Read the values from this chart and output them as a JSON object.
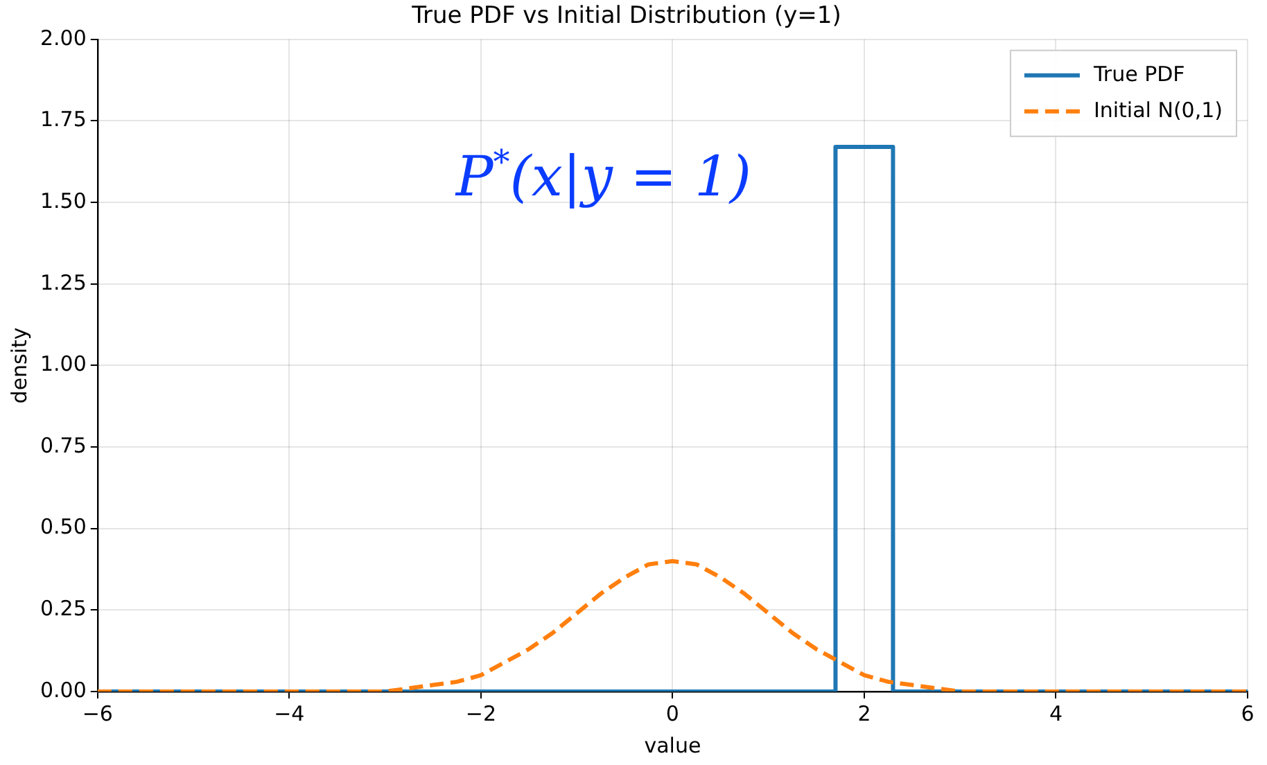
{
  "chart_data": {
    "type": "line",
    "title": "True PDF vs Initial Distribution (y=1)",
    "xlabel": "value",
    "ylabel": "density",
    "annotations": [
      "P$^{*}$(x|y = 1)"
    ],
    "series": [
      {
        "name": "True PDF",
        "color": "#1f77b4",
        "line_style": "solid",
        "x": [
          -6,
          1.7,
          1.7,
          2.3,
          2.3,
          6
        ],
        "values": [
          0,
          0,
          1.67,
          1.67,
          0,
          0
        ]
      },
      {
        "name": "Initial N(0,1)",
        "color": "#ff7f0e",
        "line_style": "dashed",
        "x": [
          -6,
          -5,
          -4,
          -3.5,
          -3,
          -2.75,
          -2.5,
          -2.25,
          -2,
          -1.75,
          -1.5,
          -1.25,
          -1,
          -0.75,
          -0.5,
          -0.25,
          0,
          0.25,
          0.5,
          0.75,
          1,
          1.25,
          1.5,
          1.75,
          2,
          2.25,
          2.5,
          2.75,
          3,
          3.5,
          4,
          5,
          6
        ],
        "values": [
          0,
          0,
          0,
          0,
          0,
          0.01,
          0.02,
          0.03,
          0.05,
          0.09,
          0.13,
          0.18,
          0.24,
          0.3,
          0.35,
          0.39,
          0.4,
          0.39,
          0.35,
          0.3,
          0.24,
          0.18,
          0.13,
          0.09,
          0.05,
          0.03,
          0.02,
          0.01,
          0,
          0,
          0,
          0,
          0
        ]
      }
    ],
    "xlim": [
      -6,
      6
    ],
    "xticks": [
      {
        "value": -6,
        "label": "−6"
      },
      {
        "value": -4,
        "label": "−4"
      },
      {
        "value": -2,
        "label": "−2"
      },
      0,
      2,
      4,
      6
    ],
    "ylim": [
      0,
      2
    ],
    "yticks": [
      {
        "value": 0,
        "label": "0.00"
      },
      {
        "value": 0.25,
        "label": "0.25"
      },
      {
        "value": 0.5,
        "label": "0.50"
      },
      {
        "value": 0.75,
        "label": "0.75"
      },
      {
        "value": 1,
        "label": "1.00"
      },
      {
        "value": 1.25,
        "label": "1.25"
      },
      {
        "value": 1.5,
        "label": "1.50"
      },
      {
        "value": 1.75,
        "label": "1.75"
      },
      {
        "value": 2,
        "label": "2.00"
      }
    ],
    "grid": true,
    "legend": "top right",
    "marker": "none"
  }
}
